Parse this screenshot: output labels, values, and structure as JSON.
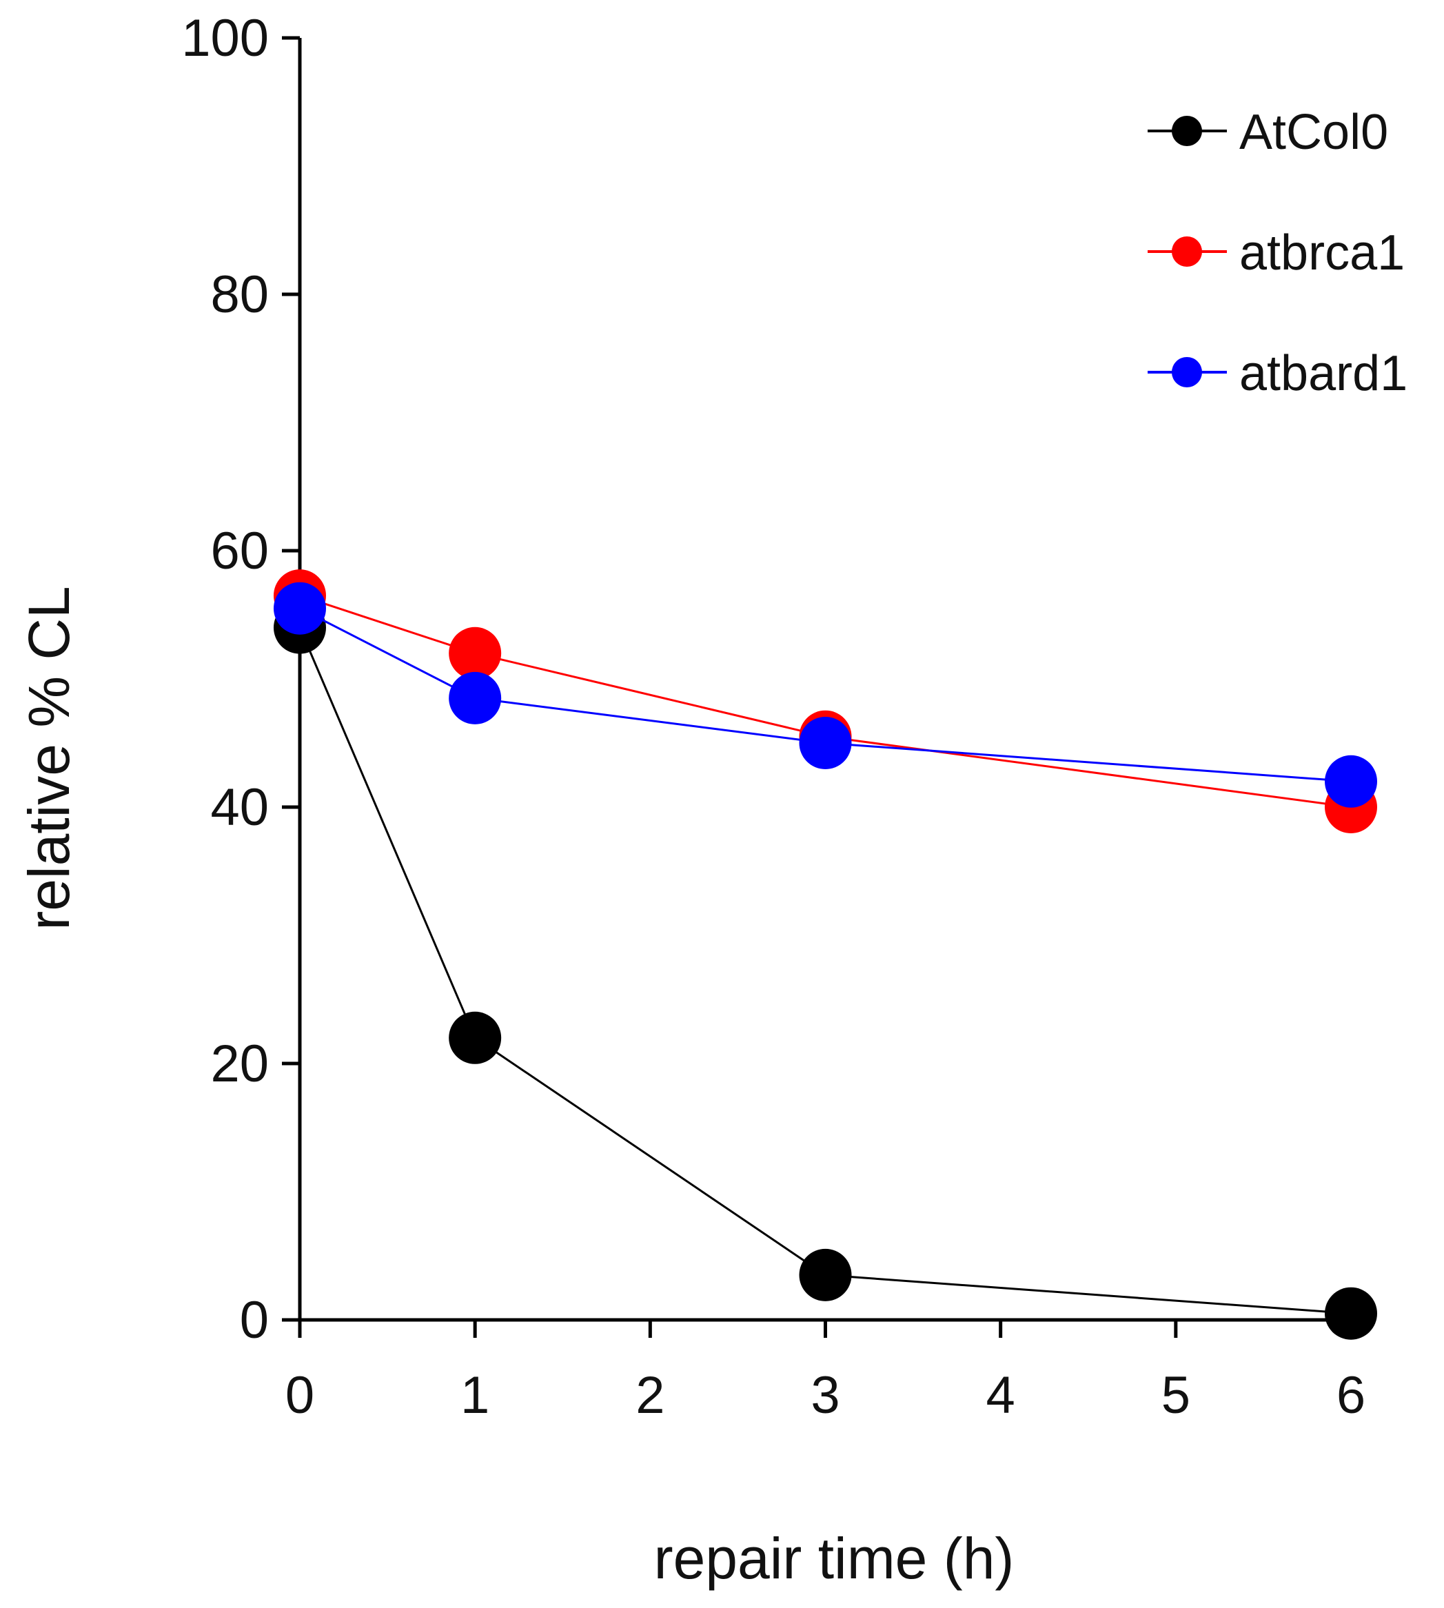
{
  "chart_data": {
    "type": "line",
    "title": "",
    "xlabel": "repair time (h)",
    "ylabel": "relative % CL",
    "xlim": [
      0,
      6
    ],
    "ylim": [
      0,
      100
    ],
    "x_ticks": [
      0,
      1,
      2,
      3,
      4,
      5,
      6
    ],
    "x_tick_labels": [
      "0",
      "1",
      "2",
      "3",
      "4",
      "5",
      "6"
    ],
    "y_ticks": [
      0,
      20,
      40,
      60,
      80,
      100
    ],
    "y_tick_labels": [
      "0",
      "20",
      "40",
      "60",
      "80",
      "100"
    ],
    "grid": false,
    "legend_position": "top-right",
    "series": [
      {
        "name": "AtCol0",
        "color": "#000000",
        "x": [
          0,
          1,
          3,
          6
        ],
        "values": [
          54,
          22,
          3.5,
          0.5
        ]
      },
      {
        "name": "atbrca1",
        "color": "#ff0000",
        "x": [
          0,
          1,
          3,
          6
        ],
        "values": [
          56.5,
          52,
          45.5,
          40
        ]
      },
      {
        "name": "atbard1",
        "color": "#0000ff",
        "x": [
          0,
          1,
          3,
          6
        ],
        "values": [
          55.5,
          48.5,
          45,
          42
        ]
      }
    ]
  }
}
